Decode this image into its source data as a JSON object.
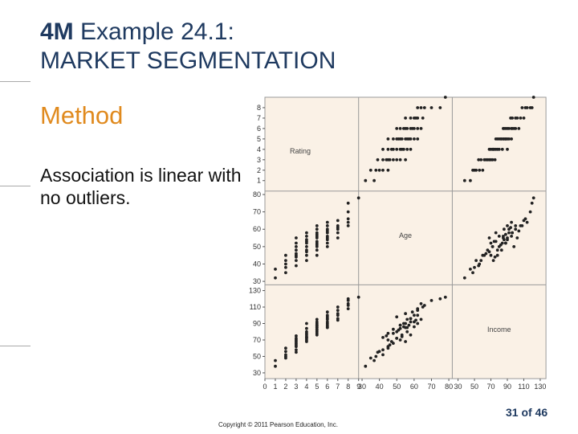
{
  "slide": {
    "title_lead": "4M",
    "title_rest": " Example 24.1:",
    "title_line2": "MARKET SEGMENTATION",
    "subheading": "Method",
    "body": "Association is linear with no outliers.",
    "page_number": "31 of 46",
    "copyright": "Copyright © 2011 Pearson Education, Inc."
  },
  "colors": {
    "title": "#1f3a60",
    "subheading": "#e08a1e",
    "panel_bg": "#faf1e6",
    "dot": "#222222"
  },
  "chart_data": {
    "type": "scatter",
    "variables": [
      "Rating",
      "Age",
      "Income"
    ],
    "axes": {
      "Rating": {
        "range": [
          0,
          9
        ],
        "ticks": [
          0,
          1,
          2,
          3,
          4,
          5,
          6,
          7,
          8,
          9
        ]
      },
      "Age": {
        "range": [
          28,
          82
        ],
        "ticks": [
          30,
          40,
          50,
          60,
          70,
          80
        ]
      },
      "Income": {
        "range": [
          23,
          137
        ],
        "ticks": [
          30,
          50,
          70,
          90,
          110,
          130
        ]
      }
    },
    "observations": [
      {
        "rating": 1,
        "age": 32,
        "income": 38
      },
      {
        "rating": 1,
        "age": 37,
        "income": 45
      },
      {
        "rating": 2,
        "age": 42,
        "income": 52
      },
      {
        "rating": 2,
        "age": 35,
        "income": 48
      },
      {
        "rating": 2,
        "age": 40,
        "income": 56
      },
      {
        "rating": 2,
        "age": 45,
        "income": 60
      },
      {
        "rating": 2,
        "age": 38,
        "income": 50
      },
      {
        "rating": 3,
        "age": 45,
        "income": 62
      },
      {
        "rating": 3,
        "age": 48,
        "income": 66
      },
      {
        "rating": 3,
        "age": 52,
        "income": 70
      },
      {
        "rating": 3,
        "age": 42,
        "income": 58
      },
      {
        "rating": 3,
        "age": 50,
        "income": 72
      },
      {
        "rating": 3,
        "age": 46,
        "income": 64
      },
      {
        "rating": 3,
        "age": 39,
        "income": 55
      },
      {
        "rating": 3,
        "age": 55,
        "income": 68
      },
      {
        "rating": 3,
        "age": 44,
        "income": 75
      },
      {
        "rating": 4,
        "age": 50,
        "income": 72
      },
      {
        "rating": 4,
        "age": 48,
        "income": 78
      },
      {
        "rating": 4,
        "age": 53,
        "income": 74
      },
      {
        "rating": 4,
        "age": 56,
        "income": 80
      },
      {
        "rating": 4,
        "age": 45,
        "income": 70
      },
      {
        "rating": 4,
        "age": 52,
        "income": 84
      },
      {
        "rating": 4,
        "age": 47,
        "income": 68
      },
      {
        "rating": 4,
        "age": 58,
        "income": 76
      },
      {
        "rating": 4,
        "age": 42,
        "income": 73
      },
      {
        "rating": 4,
        "age": 54,
        "income": 90
      },
      {
        "rating": 5,
        "age": 50,
        "income": 80
      },
      {
        "rating": 5,
        "age": 55,
        "income": 85
      },
      {
        "rating": 5,
        "age": 52,
        "income": 88
      },
      {
        "rating": 5,
        "age": 58,
        "income": 92
      },
      {
        "rating": 5,
        "age": 48,
        "income": 83
      },
      {
        "rating": 5,
        "age": 60,
        "income": 86
      },
      {
        "rating": 5,
        "age": 45,
        "income": 78
      },
      {
        "rating": 5,
        "age": 56,
        "income": 95
      },
      {
        "rating": 5,
        "age": 53,
        "income": 76
      },
      {
        "rating": 5,
        "age": 62,
        "income": 90
      },
      {
        "rating": 5,
        "age": 51,
        "income": 82
      },
      {
        "rating": 5,
        "age": 57,
        "income": 88
      },
      {
        "rating": 6,
        "age": 55,
        "income": 90
      },
      {
        "rating": 6,
        "age": 58,
        "income": 96
      },
      {
        "rating": 6,
        "age": 60,
        "income": 92
      },
      {
        "rating": 6,
        "age": 52,
        "income": 88
      },
      {
        "rating": 6,
        "age": 62,
        "income": 100
      },
      {
        "rating": 6,
        "age": 56,
        "income": 85
      },
      {
        "rating": 6,
        "age": 64,
        "income": 95
      },
      {
        "rating": 6,
        "age": 50,
        "income": 98
      },
      {
        "rating": 6,
        "age": 59,
        "income": 104
      },
      {
        "rating": 6,
        "age": 54,
        "income": 86
      },
      {
        "rating": 7,
        "age": 60,
        "income": 100
      },
      {
        "rating": 7,
        "age": 62,
        "income": 106
      },
      {
        "rating": 7,
        "age": 58,
        "income": 96
      },
      {
        "rating": 7,
        "age": 65,
        "income": 110
      },
      {
        "rating": 7,
        "age": 55,
        "income": 102
      },
      {
        "rating": 7,
        "age": 61,
        "income": 94
      },
      {
        "rating": 8,
        "age": 66,
        "income": 112
      },
      {
        "rating": 8,
        "age": 70,
        "income": 118
      },
      {
        "rating": 8,
        "age": 62,
        "income": 108
      },
      {
        "rating": 8,
        "age": 75,
        "income": 120
      },
      {
        "rating": 8,
        "age": 64,
        "income": 114
      },
      {
        "rating": 9,
        "age": 78,
        "income": 122
      }
    ]
  }
}
